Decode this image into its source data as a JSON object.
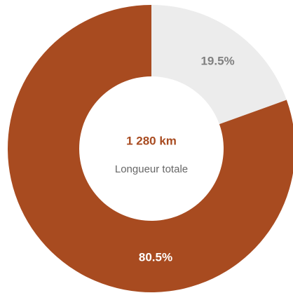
{
  "chart_data": {
    "type": "donut",
    "values": [
      19.5,
      80.5
    ],
    "value_labels": [
      "19.5%",
      "80.5%"
    ],
    "colors": [
      "#ececec",
      "#a84b20"
    ],
    "label_colors": [
      "#808080",
      "#ffffff"
    ],
    "center_value": "1 280 km",
    "center_label": "Longueur totale",
    "center_value_color": "#a84b20",
    "center_label_color": "#666666"
  }
}
